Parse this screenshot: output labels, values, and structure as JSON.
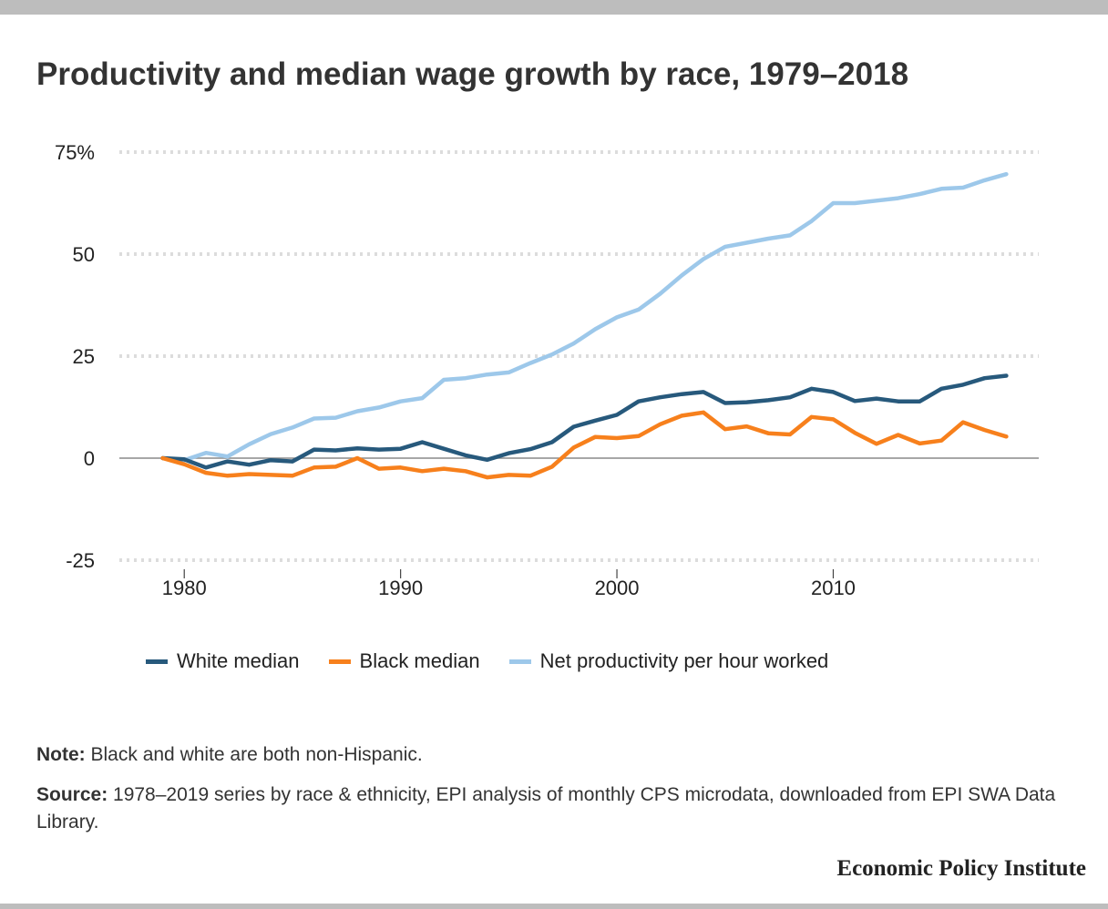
{
  "title": "Productivity and median wage growth by race, 1979–2018",
  "chart_data": {
    "type": "line",
    "title": "Productivity and median wage growth by race, 1979–2018",
    "xlabel": "",
    "ylabel": "",
    "x": [
      1979,
      1980,
      1981,
      1982,
      1983,
      1984,
      1985,
      1986,
      1987,
      1988,
      1989,
      1990,
      1991,
      1992,
      1993,
      1994,
      1995,
      1996,
      1997,
      1998,
      1999,
      2000,
      2001,
      2002,
      2003,
      2004,
      2005,
      2006,
      2007,
      2008,
      2009,
      2010,
      2011,
      2012,
      2013,
      2014,
      2015,
      2016,
      2017,
      2018
    ],
    "xlim": [
      1977,
      2019.5
    ],
    "ylim": [
      -25,
      75
    ],
    "x_ticks": [
      1980,
      1990,
      2000,
      2010
    ],
    "x_tick_labels": [
      "1980",
      "1990",
      "2000",
      "2010"
    ],
    "y_ticks": [
      75,
      50,
      25,
      0,
      -25
    ],
    "y_tick_labels": [
      "75%",
      "50",
      "25",
      "0",
      "-25"
    ],
    "grid": true,
    "legend_position": "bottom",
    "series": [
      {
        "name": "White median",
        "color": "#27597c",
        "values": [
          0,
          -0.3,
          -2.3,
          -0.8,
          -1.6,
          -0.5,
          -0.8,
          2.1,
          1.9,
          2.4,
          2.1,
          2.3,
          3.9,
          2.3,
          0.7,
          -0.4,
          1.2,
          2.2,
          3.9,
          7.7,
          9.2,
          10.6,
          13.9,
          14.9,
          15.7,
          16.2,
          13.5,
          13.7,
          14.2,
          14.9,
          17,
          16.2,
          14,
          14.6,
          13.9,
          13.9,
          17,
          18,
          19.6,
          20.2
        ]
      },
      {
        "name": "Black median",
        "color": "#f7801c",
        "values": [
          0,
          -1.5,
          -3.6,
          -4.3,
          -3.9,
          -4.1,
          -4.3,
          -2.3,
          -2.1,
          0,
          -2.6,
          -2.3,
          -3.2,
          -2.6,
          -3.2,
          -4.7,
          -4.1,
          -4.3,
          -2.1,
          2.6,
          5.2,
          4.9,
          5.4,
          8.3,
          10.4,
          11.2,
          7.1,
          7.8,
          6.1,
          5.8,
          10.1,
          9.5,
          6.2,
          3.5,
          5.7,
          3.6,
          4.3,
          8.8,
          6.9,
          5.3
        ]
      },
      {
        "name": "Net productivity per hour worked",
        "color": "#9dc8ea",
        "values": [
          0,
          -0.5,
          1.3,
          0.4,
          3.4,
          5.9,
          7.5,
          9.7,
          9.9,
          11.5,
          12.4,
          13.9,
          14.7,
          19.2,
          19.6,
          20.5,
          21,
          23.3,
          25.4,
          28.1,
          31.6,
          34.5,
          36.4,
          40.3,
          44.8,
          48.8,
          51.8,
          52.8,
          53.8,
          54.6,
          58.1,
          62.5,
          62.5,
          63.1,
          63.7,
          64.7,
          66,
          66.3,
          68.1,
          69.6
        ]
      }
    ]
  },
  "footer": {
    "note_label": "Note:",
    "note_text": " Black and white are both non-Hispanic.",
    "source_label": "Source:",
    "source_text": " 1978–2019 series by race & ethnicity, EPI analysis of monthly CPS microdata, downloaded from EPI SWA Data Library."
  },
  "brand": "Economic Policy Institute"
}
